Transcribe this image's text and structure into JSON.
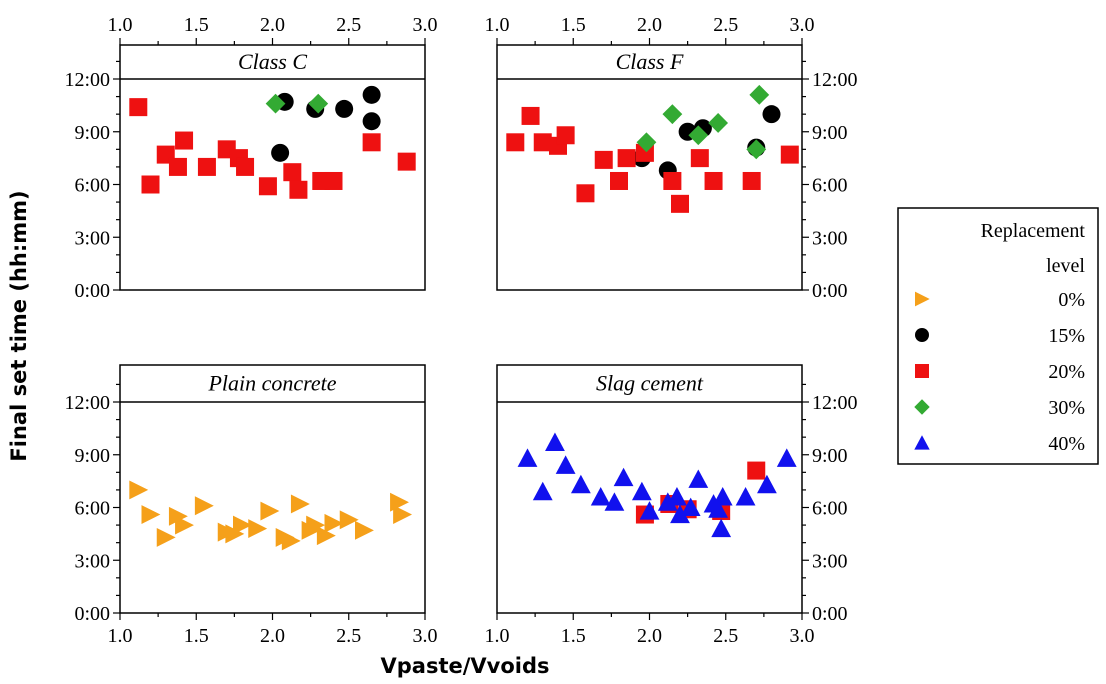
{
  "chart_data": {
    "type": "scatter",
    "xlabel": "Vpaste/Vvoids",
    "ylabel": "Final set time (hh:mm)",
    "xlim": [
      1.0,
      3.0
    ],
    "ylim": [
      0,
      14
    ],
    "x_ticks": [
      "1.0",
      "1.5",
      "2.0",
      "2.5",
      "3.0"
    ],
    "y_ticks": [
      "0:00",
      "3:00",
      "6:00",
      "9:00",
      "12:00"
    ],
    "legend": {
      "title_line1": "Replacement",
      "title_line2": "level",
      "placement": "right",
      "entries": [
        {
          "label": "0%",
          "marker": "triangle-right",
          "color": "#F5A01A"
        },
        {
          "label": "15%",
          "marker": "circle",
          "color": "#000000"
        },
        {
          "label": "20%",
          "marker": "square",
          "color": "#EE1111"
        },
        {
          "label": "30%",
          "marker": "diamond",
          "color": "#33AA33"
        },
        {
          "label": "40%",
          "marker": "triangle-up",
          "color": "#1111EE"
        }
      ]
    },
    "panels": [
      {
        "title": "Class C",
        "series": [
          {
            "level": "15%",
            "points": [
              [
                2.08,
                10.7
              ],
              [
                2.05,
                7.8
              ],
              [
                2.28,
                10.3
              ],
              [
                2.47,
                10.3
              ],
              [
                2.65,
                11.1
              ],
              [
                2.65,
                9.6
              ]
            ]
          },
          {
            "level": "20%",
            "points": [
              [
                1.12,
                10.4
              ],
              [
                1.2,
                6.0
              ],
              [
                1.3,
                7.7
              ],
              [
                1.38,
                7.0
              ],
              [
                1.42,
                8.5
              ],
              [
                1.57,
                7.0
              ],
              [
                1.7,
                8.0
              ],
              [
                1.78,
                7.5
              ],
              [
                1.82,
                7.0
              ],
              [
                1.97,
                5.9
              ],
              [
                2.13,
                6.7
              ],
              [
                2.17,
                5.7
              ],
              [
                2.32,
                6.2
              ],
              [
                2.4,
                6.2
              ],
              [
                2.65,
                8.4
              ],
              [
                2.88,
                7.3
              ]
            ]
          },
          {
            "level": "30%",
            "points": [
              [
                2.02,
                10.6
              ],
              [
                2.3,
                10.6
              ]
            ]
          }
        ]
      },
      {
        "title": "Class F",
        "series": [
          {
            "level": "15%",
            "points": [
              [
                1.95,
                7.5
              ],
              [
                2.12,
                6.8
              ],
              [
                2.25,
                9.0
              ],
              [
                2.35,
                9.2
              ],
              [
                2.7,
                8.1
              ],
              [
                2.8,
                10.0
              ]
            ]
          },
          {
            "level": "20%",
            "points": [
              [
                1.12,
                8.4
              ],
              [
                1.22,
                9.9
              ],
              [
                1.3,
                8.4
              ],
              [
                1.4,
                8.2
              ],
              [
                1.45,
                8.8
              ],
              [
                1.58,
                5.5
              ],
              [
                1.7,
                7.4
              ],
              [
                1.8,
                6.2
              ],
              [
                1.85,
                7.5
              ],
              [
                1.97,
                7.8
              ],
              [
                2.15,
                6.2
              ],
              [
                2.2,
                4.9
              ],
              [
                2.33,
                7.5
              ],
              [
                2.42,
                6.2
              ],
              [
                2.67,
                6.2
              ],
              [
                2.92,
                7.7
              ]
            ]
          },
          {
            "level": "30%",
            "points": [
              [
                1.98,
                8.4
              ],
              [
                2.15,
                10.0
              ],
              [
                2.32,
                8.8
              ],
              [
                2.45,
                9.5
              ],
              [
                2.7,
                8.0
              ],
              [
                2.72,
                11.1
              ]
            ]
          }
        ]
      },
      {
        "title": "Plain concrete",
        "series": [
          {
            "level": "0%",
            "points": [
              [
                1.12,
                7.0
              ],
              [
                1.2,
                5.6
              ],
              [
                1.3,
                4.3
              ],
              [
                1.38,
                5.5
              ],
              [
                1.42,
                5.0
              ],
              [
                1.55,
                6.1
              ],
              [
                1.7,
                4.6
              ],
              [
                1.75,
                4.5
              ],
              [
                1.8,
                5.0
              ],
              [
                1.9,
                4.8
              ],
              [
                1.98,
                5.8
              ],
              [
                2.08,
                4.3
              ],
              [
                2.12,
                4.1
              ],
              [
                2.18,
                6.2
              ],
              [
                2.25,
                4.7
              ],
              [
                2.28,
                5.0
              ],
              [
                2.35,
                4.4
              ],
              [
                2.4,
                5.1
              ],
              [
                2.5,
                5.3
              ],
              [
                2.6,
                4.7
              ],
              [
                2.83,
                6.3
              ],
              [
                2.85,
                5.6
              ]
            ]
          }
        ]
      },
      {
        "title": "Slag cement",
        "series": [
          {
            "level": "20%",
            "points": [
              [
                1.97,
                5.6
              ],
              [
                2.13,
                6.2
              ],
              [
                2.25,
                5.9
              ],
              [
                2.47,
                5.8
              ],
              [
                2.7,
                8.1
              ]
            ]
          },
          {
            "level": "40%",
            "points": [
              [
                1.2,
                8.8
              ],
              [
                1.3,
                6.9
              ],
              [
                1.38,
                9.7
              ],
              [
                1.45,
                8.4
              ],
              [
                1.55,
                7.3
              ],
              [
                1.68,
                6.6
              ],
              [
                1.77,
                6.3
              ],
              [
                1.83,
                7.7
              ],
              [
                1.95,
                6.9
              ],
              [
                2.0,
                5.8
              ],
              [
                2.12,
                6.3
              ],
              [
                2.18,
                6.6
              ],
              [
                2.2,
                5.6
              ],
              [
                2.27,
                6.0
              ],
              [
                2.32,
                7.6
              ],
              [
                2.42,
                6.2
              ],
              [
                2.45,
                5.9
              ],
              [
                2.47,
                4.8
              ],
              [
                2.48,
                6.6
              ],
              [
                2.63,
                6.6
              ],
              [
                2.77,
                7.3
              ],
              [
                2.9,
                8.8
              ]
            ]
          }
        ]
      }
    ]
  }
}
